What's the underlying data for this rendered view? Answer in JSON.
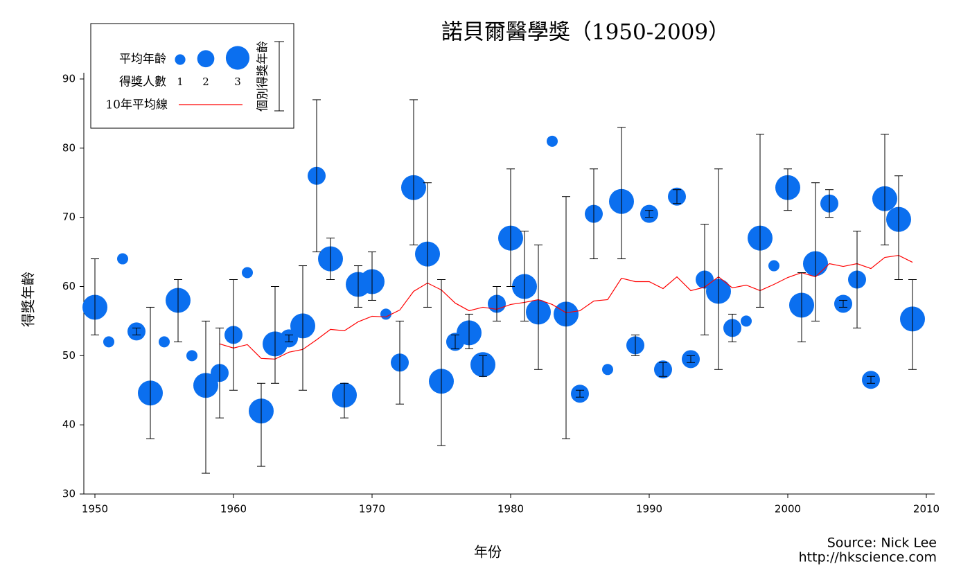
{
  "chart_data": {
    "type": "bubble",
    "title": "諾貝爾醫學獎（1950-2009）",
    "x_label": "年份",
    "y_label": "得獎年齡",
    "source": "Source: Nick Lee",
    "url": "http://hkscience.com",
    "xlim": [
      1949.2,
      2010.6
    ],
    "xticks": [
      1950,
      1960,
      1970,
      1980,
      1990,
      2000,
      2010
    ],
    "ylim": [
      30,
      90.9
    ],
    "yticks": [
      30,
      40,
      50,
      60,
      70,
      80,
      90
    ],
    "x": [
      1950,
      1951,
      1952,
      1953,
      1954,
      1955,
      1956,
      1957,
      1958,
      1959,
      1960,
      1961,
      1962,
      1963,
      1964,
      1965,
      1966,
      1967,
      1968,
      1969,
      1970,
      1971,
      1972,
      1973,
      1974,
      1975,
      1976,
      1977,
      1978,
      1979,
      1980,
      1981,
      1982,
      1983,
      1984,
      1985,
      1986,
      1987,
      1988,
      1989,
      1990,
      1991,
      1992,
      1993,
      1994,
      1995,
      1996,
      1997,
      1998,
      1999,
      2000,
      2001,
      2002,
      2003,
      2004,
      2005,
      2006,
      2007,
      2008,
      2009
    ],
    "series": [
      {
        "name": "平均年齡",
        "color": "#0b6fef",
        "values": [
          57,
          52,
          64,
          53.5,
          44.6,
          52,
          58,
          50,
          45.7,
          47.5,
          53,
          62,
          42,
          51.7,
          52.5,
          54.3,
          76,
          64,
          44.3,
          60.3,
          60.7,
          56,
          49,
          74.3,
          64.7,
          46.3,
          52,
          53.3,
          48.7,
          57.5,
          67,
          60,
          56.3,
          81,
          56,
          44.5,
          70.5,
          48,
          72.3,
          51.5,
          70.5,
          48,
          73,
          49.5,
          61,
          59.3,
          54,
          55,
          67,
          63,
          74.3,
          57.3,
          63.3,
          72,
          57.5,
          61,
          46.5,
          72.7,
          69.7,
          55.3
        ],
        "sizes": [
          3,
          1,
          1,
          2,
          3,
          1,
          3,
          1,
          3,
          2,
          2,
          1,
          3,
          3,
          2,
          3,
          2,
          3,
          3,
          3,
          3,
          1,
          2,
          3,
          3,
          3,
          2,
          3,
          3,
          2,
          3,
          3,
          3,
          1,
          3,
          2,
          2,
          1,
          3,
          2,
          2,
          2,
          2,
          2,
          2,
          3,
          2,
          1,
          3,
          1,
          3,
          3,
          3,
          2,
          2,
          2,
          2,
          3,
          3,
          3
        ],
        "err_low": [
          53,
          null,
          null,
          53,
          38,
          null,
          52,
          null,
          33,
          41,
          45,
          null,
          34,
          46,
          52,
          45,
          65,
          61,
          41,
          57,
          58,
          null,
          43,
          66,
          57,
          37,
          51,
          51,
          47,
          55,
          60,
          55,
          48,
          null,
          38,
          44,
          64,
          null,
          64,
          50,
          70,
          47,
          72,
          49,
          53,
          48,
          52,
          null,
          57,
          null,
          71,
          52,
          55,
          70,
          57,
          54,
          46,
          66,
          61,
          48
        ],
        "err_high": [
          64,
          null,
          null,
          54,
          57,
          null,
          61,
          null,
          55,
          54,
          61,
          null,
          46,
          60,
          53,
          63,
          87,
          67,
          46,
          63,
          65,
          null,
          55,
          87,
          75,
          61,
          53,
          56,
          50,
          60,
          77,
          68,
          66,
          null,
          73,
          45,
          77,
          null,
          83,
          53,
          71,
          49,
          74,
          50,
          69,
          77,
          56,
          null,
          82,
          null,
          77,
          62,
          75,
          74,
          58,
          68,
          47,
          82,
          76,
          61
        ]
      }
    ],
    "line": {
      "name": "10年平均線",
      "color": "#ff0000",
      "values": [
        null,
        null,
        null,
        null,
        null,
        null,
        null,
        null,
        null,
        51.7,
        51.1,
        51.6,
        49.6,
        49.5,
        50.5,
        50.9,
        52.3,
        53.8,
        53.6,
        54.9,
        55.7,
        55.6,
        56.6,
        59.3,
        60.5,
        59.5,
        57.6,
        56.5,
        57,
        56.7,
        57.4,
        57.7,
        58.1,
        57.4,
        56.2,
        56.5,
        57.9,
        58.1,
        61.2,
        60.7,
        60.7,
        59.7,
        61.4,
        59.4,
        59.9,
        61.4,
        59.8,
        60.2,
        59.4,
        60.3,
        61.3,
        62,
        61.4,
        63.3,
        62.9,
        63.3,
        62.6,
        64.2,
        64.5,
        63.5
      ]
    },
    "legend": {
      "count_title": "得獎人數",
      "sizes": [
        1,
        2,
        3
      ],
      "errorbar_label": "個別得獎年齡"
    }
  }
}
